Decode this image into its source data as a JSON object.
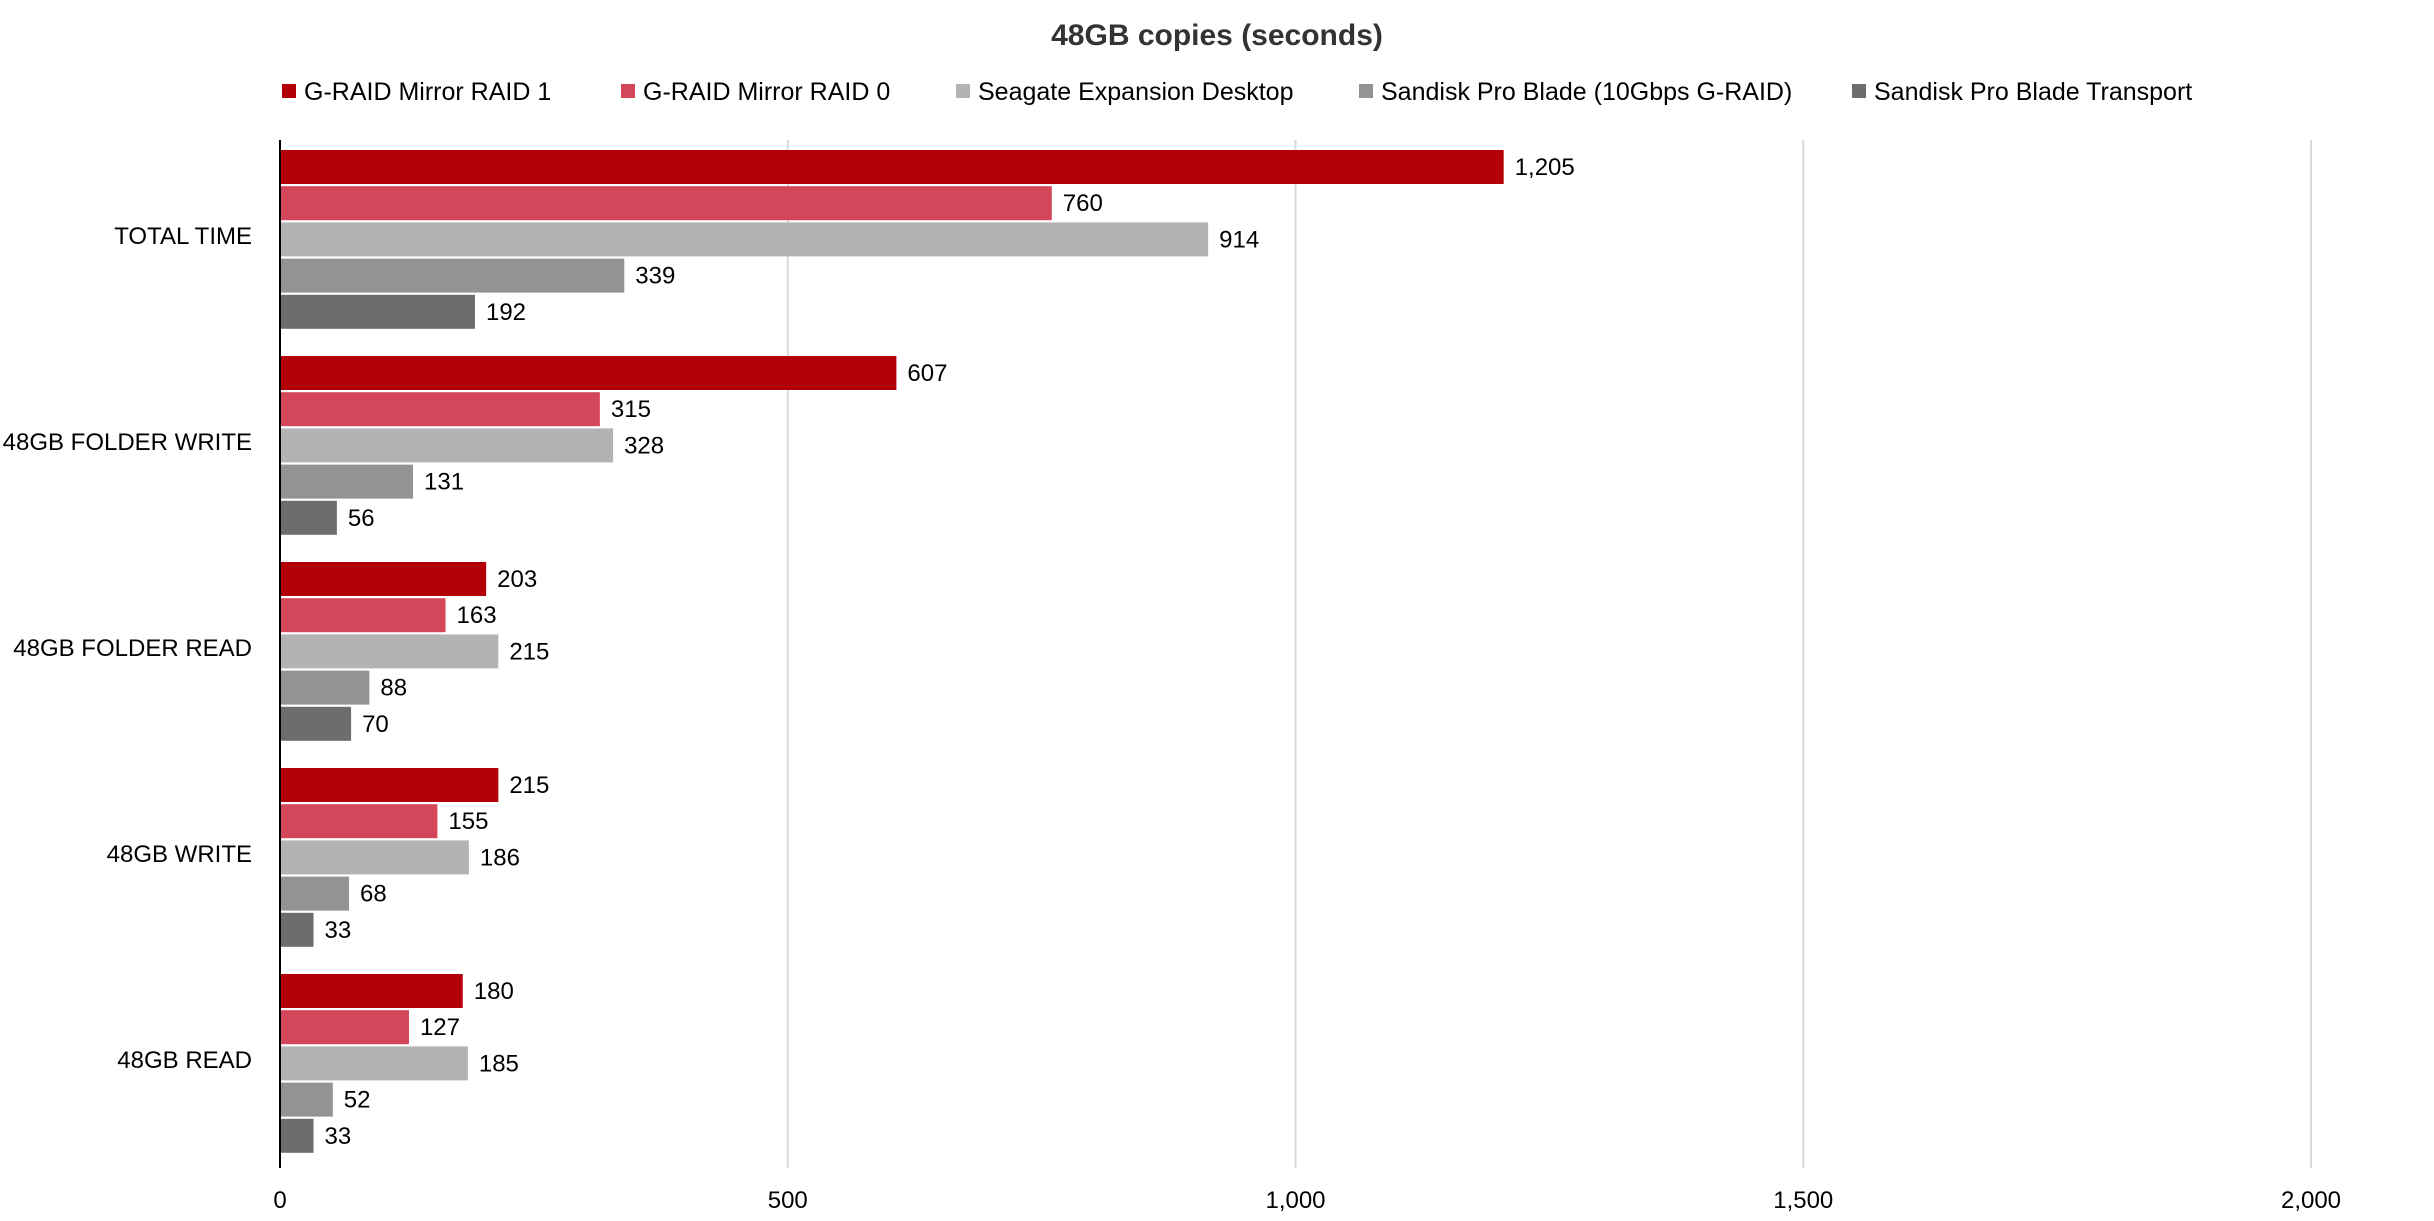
{
  "chart_data": {
    "type": "bar",
    "orientation": "horizontal",
    "title": "48GB copies (seconds)",
    "xlabel": "",
    "ylabel": "",
    "xlim": [
      0,
      2000
    ],
    "x_ticks": [
      0,
      500,
      1000,
      1500,
      2000
    ],
    "x_tick_labels": [
      "0",
      "500",
      "1,000",
      "1,500",
      "2,000"
    ],
    "grid": "vertical",
    "legend_position": "top",
    "categories": [
      "TOTAL TIME",
      "48GB FOLDER WRITE",
      "48GB FOLDER READ",
      "48GB WRITE",
      "48GB READ"
    ],
    "series": [
      {
        "name": "G-RAID Mirror RAID 1",
        "color": "#b30008",
        "values": [
          1205,
          607,
          203,
          215,
          180
        ],
        "labels": [
          "1,205",
          "607",
          "203",
          "215",
          "180"
        ]
      },
      {
        "name": "G-RAID Mirror RAID 0",
        "color": "#d4465a",
        "values": [
          760,
          315,
          163,
          155,
          127
        ],
        "labels": [
          "760",
          "315",
          "163",
          "155",
          "127"
        ]
      },
      {
        "name": "Seagate Expansion Desktop",
        "color": "#b3b3b3",
        "values": [
          914,
          328,
          215,
          186,
          185
        ],
        "labels": [
          "914",
          "328",
          "215",
          "186",
          "185"
        ]
      },
      {
        "name": "Sandisk Pro Blade (10Gbps G-RAID)",
        "color": "#939393",
        "values": [
          339,
          131,
          88,
          68,
          52
        ],
        "labels": [
          "339",
          "131",
          "88",
          "68",
          "52"
        ]
      },
      {
        "name": "Sandisk Pro Blade Transport",
        "color": "#6d6d6d",
        "values": [
          192,
          56,
          70,
          33,
          33
        ],
        "labels": [
          "192",
          "56",
          "70",
          "33",
          "33"
        ]
      }
    ]
  }
}
